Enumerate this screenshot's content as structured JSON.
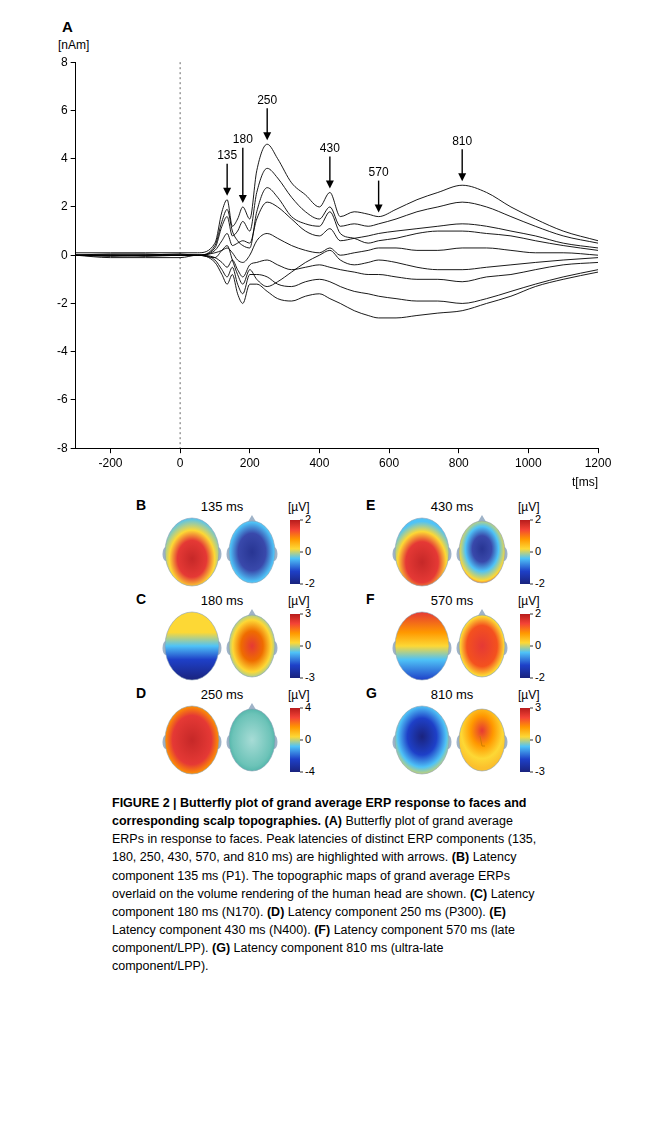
{
  "chart_data": {
    "panel": "A",
    "type": "line",
    "color": "#000000",
    "y_label": "[nAm]",
    "x_label": "t[ms]",
    "xlim": [
      -300,
      1200
    ],
    "xticks": [
      -200,
      0,
      200,
      400,
      600,
      800,
      1000,
      1200
    ],
    "ylim": [
      -8,
      8
    ],
    "yticks": [
      -8,
      -6,
      -4,
      -2,
      0,
      2,
      4,
      6,
      8
    ],
    "grid": false,
    "reference_lines": [
      {
        "x": 0,
        "line_style": "dotted"
      }
    ],
    "x": [
      -300,
      -200,
      -100,
      0,
      50,
      100,
      120,
      135,
      150,
      165,
      180,
      200,
      220,
      250,
      280,
      320,
      360,
      400,
      430,
      460,
      500,
      540,
      570,
      620,
      680,
      740,
      810,
      880,
      950,
      1020,
      1100,
      1200
    ],
    "series": [
      {
        "values": [
          0.1,
          0.1,
          0.1,
          0.1,
          0.1,
          0.5,
          1.8,
          2.3,
          1.2,
          1.5,
          2.0,
          1.5,
          3.5,
          4.6,
          4.0,
          3.0,
          2.5,
          2.0,
          2.6,
          1.6,
          1.8,
          1.7,
          1.6,
          1.9,
          2.3,
          2.6,
          2.9,
          2.6,
          2.0,
          1.5,
          1.0,
          0.6
        ]
      },
      {
        "values": [
          0,
          0.05,
          0.05,
          0,
          0,
          0.3,
          1.2,
          1.6,
          0.8,
          1.0,
          1.4,
          1.0,
          2.6,
          3.6,
          3.2,
          2.4,
          1.8,
          1.5,
          2.0,
          1.2,
          1.3,
          1.2,
          1.3,
          1.5,
          1.8,
          2.0,
          2.2,
          2.0,
          1.6,
          1.2,
          0.8,
          0.5
        ]
      },
      {
        "values": [
          0,
          0,
          0,
          0,
          0,
          0.2,
          0.6,
          0.9,
          0.4,
          0.5,
          0.6,
          0.5,
          1.5,
          2.2,
          2.0,
          1.5,
          1.0,
          0.8,
          1.1,
          0.6,
          0.7,
          0.8,
          0.9,
          1.0,
          1.1,
          1.2,
          1.3,
          1.2,
          1.0,
          0.8,
          0.5,
          0.3
        ]
      },
      {
        "values": [
          0,
          -0.05,
          0,
          0.05,
          0,
          0.1,
          0.2,
          0.3,
          0.1,
          -0.2,
          -0.3,
          0,
          0.6,
          0.9,
          0.7,
          0.4,
          0.2,
          0.1,
          0.3,
          0,
          0.1,
          0.2,
          0.3,
          0.3,
          0.2,
          0.2,
          0.3,
          0.3,
          0.2,
          0.1,
          0.1,
          0
        ]
      },
      {
        "values": [
          0,
          0,
          0,
          0,
          0,
          -0.1,
          -0.3,
          -0.5,
          -0.2,
          -0.6,
          -0.9,
          -0.4,
          -0.3,
          -0.2,
          -0.4,
          -0.6,
          -0.5,
          -0.4,
          -0.5,
          -0.6,
          -0.7,
          -0.8,
          -0.8,
          -0.9,
          -1.0,
          -1.0,
          -1.1,
          -0.9,
          -0.8,
          -0.6,
          -0.4,
          -0.3
        ]
      },
      {
        "values": [
          0,
          0,
          -0.05,
          0,
          0,
          -0.2,
          -0.6,
          -0.9,
          -0.5,
          -1.2,
          -1.6,
          -0.8,
          -0.8,
          -0.9,
          -1.2,
          -1.3,
          -1.1,
          -1.0,
          -1.1,
          -1.3,
          -1.5,
          -1.6,
          -1.7,
          -1.8,
          -1.9,
          -1.9,
          -2.0,
          -1.8,
          -1.5,
          -1.2,
          -0.9,
          -0.6
        ]
      },
      {
        "values": [
          0,
          -0.1,
          -0.1,
          -0.1,
          0,
          -0.3,
          -0.8,
          -1.2,
          -0.8,
          -1.6,
          -2.0,
          -1.2,
          -1.2,
          -1.5,
          -1.8,
          -1.9,
          -1.7,
          -1.6,
          -1.8,
          -2.0,
          -2.3,
          -2.5,
          -2.6,
          -2.6,
          -2.5,
          -2.4,
          -2.3,
          -2.0,
          -1.7,
          -1.3,
          -1.0,
          -0.7
        ]
      },
      {
        "values": [
          0,
          0,
          0,
          0,
          0,
          -0.1,
          0.2,
          0.4,
          -0.2,
          -0.8,
          -1.2,
          -0.6,
          -1.0,
          -1.3,
          -1.1,
          -0.7,
          -0.3,
          0,
          0.2,
          -0.2,
          -0.4,
          -0.3,
          -0.2,
          -0.3,
          -0.5,
          -0.6,
          -0.6,
          -0.5,
          -0.4,
          -0.3,
          -0.2,
          -0.1
        ]
      },
      {
        "values": [
          0,
          0,
          0,
          0,
          0,
          0.4,
          1.4,
          1.9,
          1.0,
          0.6,
          0.4,
          0.3,
          1.8,
          2.8,
          2.4,
          1.6,
          1.3,
          1.2,
          1.8,
          0.9,
          0.7,
          0.5,
          0.6,
          0.7,
          0.9,
          1.0,
          1.0,
          0.9,
          0.8,
          0.6,
          0.4,
          0.2
        ]
      }
    ],
    "annotations": [
      {
        "x": 135,
        "y": 2.3,
        "text": "135"
      },
      {
        "x": 180,
        "y": 2.0,
        "text": "180"
      },
      {
        "x": 250,
        "y": 4.6,
        "text": "250"
      },
      {
        "x": 430,
        "y": 2.6,
        "text": "430"
      },
      {
        "x": 570,
        "y": 1.6,
        "text": "570"
      },
      {
        "x": 810,
        "y": 2.9,
        "text": "810"
      }
    ]
  },
  "topographies": [
    {
      "panel": "B",
      "title": "135 ms",
      "unit": "[µV]",
      "colorbar_range": [
        -2,
        2
      ],
      "colorbar_ticks": [
        2,
        0,
        -2
      ]
    },
    {
      "panel": "C",
      "title": "180 ms",
      "unit": "[µV]",
      "colorbar_range": [
        -3,
        3
      ],
      "colorbar_ticks": [
        3,
        0,
        -3
      ]
    },
    {
      "panel": "D",
      "title": "250 ms",
      "unit": "[µV]",
      "colorbar_range": [
        -4,
        4
      ],
      "colorbar_ticks": [
        4,
        0,
        -4
      ]
    },
    {
      "panel": "E",
      "title": "430 ms",
      "unit": "[µV]",
      "colorbar_range": [
        -2,
        2
      ],
      "colorbar_ticks": [
        2,
        0,
        -2
      ]
    },
    {
      "panel": "F",
      "title": "570 ms",
      "unit": "[µV]",
      "colorbar_range": [
        -2,
        2
      ],
      "colorbar_ticks": [
        2,
        0,
        -2
      ]
    },
    {
      "panel": "G",
      "title": "810 ms",
      "unit": "[µV]",
      "colorbar_range": [
        -3,
        3
      ],
      "colorbar_ticks": [
        3,
        0,
        -3
      ]
    }
  ],
  "caption": [
    {
      "text": "FIGURE 2 | Butterfly plot of grand average ERP response to faces and corresponding scalp topographies.",
      "bold": true
    },
    {
      "text": " ",
      "bold": false
    },
    {
      "text": "(A)",
      "bold": true
    },
    {
      "text": " Butterfly plot of grand average ERPs in response to faces. Peak latencies of distinct ERP components (135, 180, 250, 430, 570, and 810 ms) are highlighted with arrows. ",
      "bold": false
    },
    {
      "text": "(B)",
      "bold": true
    },
    {
      "text": " Latency component 135 ms (P1). The topographic maps of grand average ERPs overlaid on the volume rendering of the human head are shown. ",
      "bold": false
    },
    {
      "text": "(C)",
      "bold": true
    },
    {
      "text": " Latency component 180 ms (N170). ",
      "bold": false
    },
    {
      "text": "(D)",
      "bold": true
    },
    {
      "text": " Latency component 250 ms (P300). ",
      "bold": false
    },
    {
      "text": "(E)",
      "bold": true
    },
    {
      "text": " Latency component 430 ms (N400). ",
      "bold": false
    },
    {
      "text": "(F)",
      "bold": true
    },
    {
      "text": " Latency component 570 ms (late component/LPP). ",
      "bold": false
    },
    {
      "text": "(G)",
      "bold": true
    },
    {
      "text": " Latency component 810 ms (ultra-late component/LPP).",
      "bold": false
    }
  ]
}
